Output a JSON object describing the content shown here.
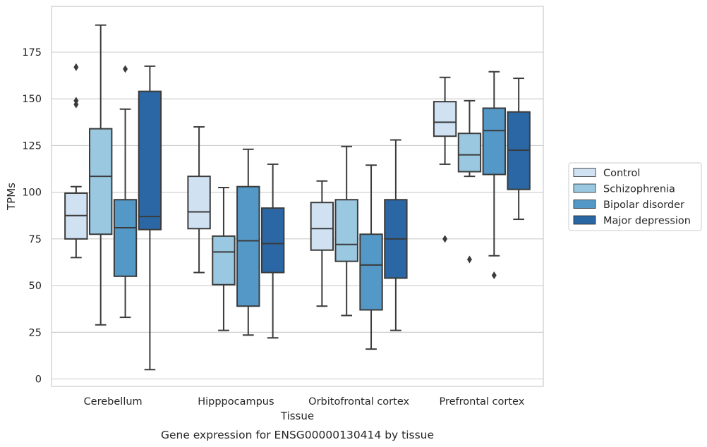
{
  "caption": "Gene expression for ENSG00000130414 by tissue",
  "chart_data": {
    "type": "boxplot",
    "xlabel": "Tissue",
    "ylabel": "TPMs",
    "ylim": [
      -4,
      199
    ],
    "yticks": [
      0,
      25,
      50,
      75,
      100,
      125,
      150,
      175
    ],
    "grid": "horizontal",
    "legend_position": "outside-right",
    "categories": [
      "Cerebellum",
      "Hipppocampus",
      "Orbitofrontal cortex",
      "Prefrontal cortex"
    ],
    "series": [
      {
        "name": "Control",
        "color": "#d0e1f2",
        "boxes": [
          {
            "whislo": 65,
            "q1": 75,
            "med": 87.5,
            "q3": 99.5,
            "whishi": 103,
            "fliers": [
              147,
              149,
              167
            ]
          },
          {
            "whislo": 57,
            "q1": 80.5,
            "med": 89.5,
            "q3": 108.5,
            "whishi": 135,
            "fliers": []
          },
          {
            "whislo": 39,
            "q1": 69,
            "med": 80.5,
            "q3": 94.5,
            "whishi": 106,
            "fliers": []
          },
          {
            "whislo": 115,
            "q1": 130,
            "med": 137.5,
            "q3": 148.5,
            "whishi": 161.5,
            "fliers": [
              75
            ]
          }
        ]
      },
      {
        "name": "Schizophrenia",
        "color": "#9ac8e0",
        "boxes": [
          {
            "whislo": 29,
            "q1": 77.5,
            "med": 108.5,
            "q3": 134,
            "whishi": 189.5,
            "fliers": []
          },
          {
            "whislo": 26,
            "q1": 50.5,
            "med": 68,
            "q3": 76.5,
            "whishi": 102.5,
            "fliers": []
          },
          {
            "whislo": 34,
            "q1": 63,
            "med": 72,
            "q3": 96,
            "whishi": 124.5,
            "fliers": []
          },
          {
            "whislo": 108.5,
            "q1": 111,
            "med": 120,
            "q3": 131.5,
            "whishi": 149,
            "fliers": [
              64
            ]
          }
        ]
      },
      {
        "name": "Bipolar disorder",
        "color": "#5398c7",
        "boxes": [
          {
            "whislo": 33,
            "q1": 55,
            "med": 81,
            "q3": 96,
            "whishi": 144.5,
            "fliers": [
              166
            ]
          },
          {
            "whislo": 23.5,
            "q1": 39,
            "med": 74,
            "q3": 103,
            "whishi": 123,
            "fliers": []
          },
          {
            "whislo": 16,
            "q1": 37,
            "med": 61,
            "q3": 77.5,
            "whishi": 114.5,
            "fliers": []
          },
          {
            "whislo": 66,
            "q1": 109.5,
            "med": 133,
            "q3": 145,
            "whishi": 164.5,
            "fliers": [
              55.5
            ]
          }
        ]
      },
      {
        "name": "Major depression",
        "color": "#2b67a5",
        "boxes": [
          {
            "whislo": 5,
            "q1": 80,
            "med": 87,
            "q3": 154,
            "whishi": 167.5,
            "fliers": []
          },
          {
            "whislo": 22,
            "q1": 57,
            "med": 72.5,
            "q3": 91.5,
            "whishi": 115,
            "fliers": []
          },
          {
            "whislo": 26,
            "q1": 54,
            "med": 75,
            "q3": 96,
            "whishi": 128,
            "fliers": []
          },
          {
            "whislo": 85.5,
            "q1": 101.5,
            "med": 122.5,
            "q3": 143,
            "whishi": 161,
            "fliers": []
          }
        ]
      }
    ]
  }
}
